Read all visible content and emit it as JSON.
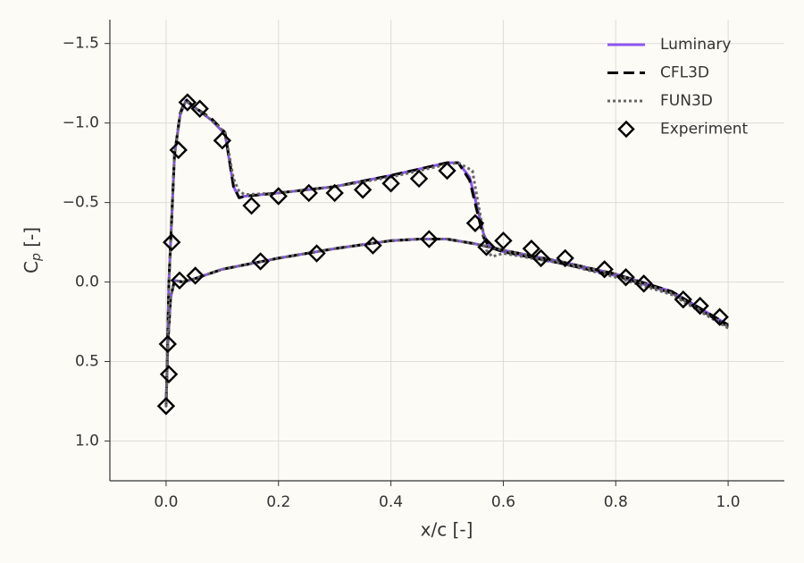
{
  "chart_data": {
    "type": "line",
    "xlabel": "x/c [-]",
    "ylabel": {
      "base": "C",
      "sub": "p",
      "suffix": " [-]"
    },
    "xlim": [
      -0.1,
      1.1
    ],
    "ylim": [
      1.25,
      -1.65
    ],
    "xticks": [
      {
        "value": 0,
        "label": "0.0"
      },
      0.2,
      0.4,
      0.6,
      0.8,
      {
        "value": 1,
        "label": "1.0"
      }
    ],
    "yticks": [
      {
        "value": -1.5,
        "label": "−1.5"
      },
      {
        "value": -1,
        "label": "−1.0"
      },
      {
        "value": -0.5,
        "label": "−0.5"
      },
      {
        "value": 0,
        "label": "0.0"
      },
      0.5,
      {
        "value": 1,
        "label": "1.0"
      }
    ],
    "grid": true,
    "legend": "upper right",
    "series": [
      {
        "name": "Luminary",
        "color": "#8b55f0",
        "mode": "line",
        "style": "solid",
        "x": [
          1.0,
          0.9,
          0.8,
          0.7,
          0.6,
          0.575,
          0.565,
          0.555,
          0.54,
          0.52,
          0.5,
          0.45,
          0.4,
          0.3,
          0.2,
          0.14,
          0.13,
          0.12,
          0.105,
          0.08,
          0.05,
          0.035,
          0.025,
          0.015,
          0.01,
          0.005,
          0.002,
          0.0,
          0.003,
          0.008,
          0.015,
          0.03,
          0.05,
          0.1,
          0.2,
          0.3,
          0.4,
          0.45,
          0.5,
          0.55,
          0.6,
          0.7,
          0.8,
          0.9,
          1.0
        ],
        "values": [
          0.28,
          0.07,
          -0.04,
          -0.12,
          -0.19,
          -0.23,
          -0.3,
          -0.45,
          -0.66,
          -0.75,
          -0.75,
          -0.71,
          -0.67,
          -0.6,
          -0.56,
          -0.54,
          -0.53,
          -0.6,
          -0.93,
          -1.02,
          -1.1,
          -1.14,
          -1.05,
          -0.8,
          -0.4,
          0.0,
          0.5,
          0.78,
          0.4,
          0.1,
          -0.01,
          0.0,
          -0.02,
          -0.08,
          -0.15,
          -0.21,
          -0.26,
          -0.27,
          -0.27,
          -0.24,
          -0.2,
          -0.13,
          -0.05,
          0.06,
          0.27
        ]
      },
      {
        "name": "CFL3D",
        "color": "#000000",
        "mode": "line",
        "style": "dashed",
        "x": [
          1.0,
          0.9,
          0.8,
          0.7,
          0.6,
          0.575,
          0.565,
          0.555,
          0.54,
          0.52,
          0.5,
          0.45,
          0.4,
          0.3,
          0.2,
          0.14,
          0.13,
          0.12,
          0.105,
          0.08,
          0.05,
          0.035,
          0.025,
          0.015,
          0.01,
          0.005,
          0.002,
          0.0,
          0.003,
          0.008,
          0.015,
          0.03,
          0.05,
          0.1,
          0.2,
          0.3,
          0.4,
          0.45,
          0.5,
          0.55,
          0.6,
          0.7,
          0.8,
          0.9,
          1.0
        ],
        "values": [
          0.28,
          0.07,
          -0.04,
          -0.12,
          -0.19,
          -0.22,
          -0.28,
          -0.42,
          -0.64,
          -0.75,
          -0.75,
          -0.71,
          -0.67,
          -0.6,
          -0.56,
          -0.54,
          -0.53,
          -0.6,
          -0.94,
          -1.03,
          -1.1,
          -1.15,
          -1.06,
          -0.8,
          -0.4,
          0.0,
          0.5,
          0.78,
          0.4,
          0.1,
          -0.01,
          0.0,
          -0.02,
          -0.08,
          -0.15,
          -0.21,
          -0.26,
          -0.27,
          -0.27,
          -0.24,
          -0.2,
          -0.13,
          -0.05,
          0.06,
          0.27
        ]
      },
      {
        "name": "FUN3D",
        "color": "#666666",
        "mode": "line",
        "style": "dotted",
        "x": [
          1.0,
          0.9,
          0.8,
          0.7,
          0.6,
          0.58,
          0.57,
          0.56,
          0.545,
          0.52,
          0.5,
          0.45,
          0.4,
          0.3,
          0.2,
          0.14,
          0.13,
          0.12,
          0.105,
          0.08,
          0.05,
          0.035,
          0.025,
          0.015,
          0.01,
          0.005,
          0.002,
          0.0,
          0.003,
          0.008,
          0.015,
          0.03,
          0.05,
          0.1,
          0.2,
          0.3,
          0.4,
          0.45,
          0.5,
          0.55,
          0.6,
          0.7,
          0.8,
          0.9,
          1.0
        ],
        "values": [
          0.29,
          0.08,
          -0.03,
          -0.12,
          -0.18,
          -0.16,
          -0.2,
          -0.4,
          -0.7,
          -0.75,
          -0.74,
          -0.7,
          -0.66,
          -0.6,
          -0.56,
          -0.55,
          -0.57,
          -0.65,
          -0.94,
          -1.02,
          -1.1,
          -1.14,
          -1.05,
          -0.8,
          -0.4,
          0.0,
          0.5,
          0.78,
          0.4,
          0.1,
          -0.01,
          0.0,
          -0.02,
          -0.08,
          -0.15,
          -0.21,
          -0.26,
          -0.27,
          -0.27,
          -0.24,
          -0.2,
          -0.13,
          -0.05,
          0.07,
          0.28
        ]
      },
      {
        "name": "Experiment",
        "color": "#000000",
        "mode": "markers",
        "x": [
          0.0,
          0.005,
          0.003,
          0.01,
          0.022,
          0.038,
          0.06,
          0.1,
          0.152,
          0.2,
          0.254,
          0.3,
          0.35,
          0.4,
          0.45,
          0.5,
          0.55,
          0.57,
          0.024,
          0.052,
          0.168,
          0.268,
          0.368,
          0.468,
          0.6,
          0.65,
          0.667,
          0.71,
          0.78,
          0.818,
          0.85,
          0.92,
          0.95,
          0.985
        ],
        "values": [
          0.78,
          0.58,
          0.39,
          -0.25,
          -0.83,
          -1.13,
          -1.09,
          -0.89,
          -0.48,
          -0.54,
          -0.56,
          -0.56,
          -0.58,
          -0.62,
          -0.65,
          -0.7,
          -0.37,
          -0.22,
          -0.01,
          -0.04,
          -0.13,
          -0.18,
          -0.23,
          -0.27,
          -0.26,
          -0.21,
          -0.15,
          -0.15,
          -0.08,
          -0.03,
          0.01,
          0.11,
          0.15,
          0.22
        ]
      }
    ]
  }
}
